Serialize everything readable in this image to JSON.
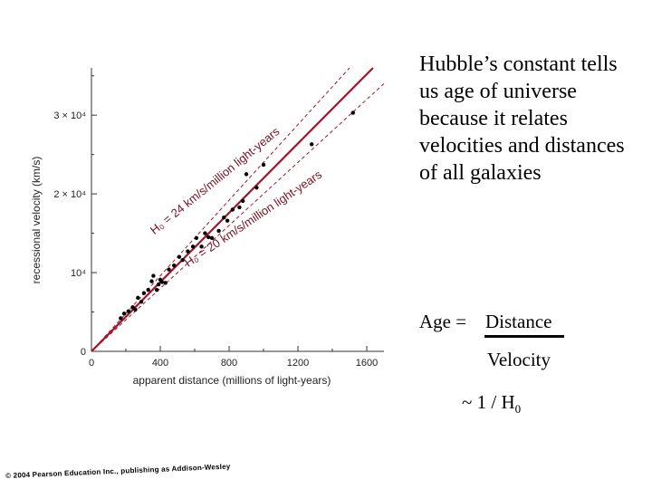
{
  "chart_data": {
    "type": "scatter",
    "xlabel": "apparent distance (millions of light-years)",
    "ylabel": "recessional velocity (km/s)",
    "xlim": [
      0,
      1700
    ],
    "ylim": [
      0,
      36000
    ],
    "x_ticks": [
      {
        "value": 0,
        "label": "0"
      },
      {
        "value": 400,
        "label": "400"
      },
      {
        "value": 800,
        "label": "800"
      },
      {
        "value": 1200,
        "label": "1200"
      },
      {
        "value": 1600,
        "label": "1600"
      }
    ],
    "y_ticks": [
      {
        "value": 0,
        "label": "0"
      },
      {
        "value": 10000,
        "label": "10⁴"
      },
      {
        "value": 20000,
        "label": "2 × 10⁴"
      },
      {
        "value": 30000,
        "label": "3 × 10⁴"
      }
    ],
    "points": [
      {
        "x": 170,
        "y": 4200
      },
      {
        "x": 190,
        "y": 4800
      },
      {
        "x": 215,
        "y": 5100
      },
      {
        "x": 240,
        "y": 5600
      },
      {
        "x": 255,
        "y": 5300
      },
      {
        "x": 270,
        "y": 6800
      },
      {
        "x": 290,
        "y": 6300
      },
      {
        "x": 305,
        "y": 7400
      },
      {
        "x": 330,
        "y": 7800
      },
      {
        "x": 350,
        "y": 8900
      },
      {
        "x": 360,
        "y": 9600
      },
      {
        "x": 380,
        "y": 7800
      },
      {
        "x": 390,
        "y": 8500
      },
      {
        "x": 400,
        "y": 9100
      },
      {
        "x": 410,
        "y": 8800
      },
      {
        "x": 430,
        "y": 8700
      },
      {
        "x": 450,
        "y": 10400
      },
      {
        "x": 480,
        "y": 10900
      },
      {
        "x": 510,
        "y": 12000
      },
      {
        "x": 530,
        "y": 11600
      },
      {
        "x": 560,
        "y": 12700
      },
      {
        "x": 590,
        "y": 13300
      },
      {
        "x": 610,
        "y": 14400
      },
      {
        "x": 640,
        "y": 13300
      },
      {
        "x": 660,
        "y": 15000
      },
      {
        "x": 680,
        "y": 14500
      },
      {
        "x": 700,
        "y": 14400
      },
      {
        "x": 740,
        "y": 15300
      },
      {
        "x": 770,
        "y": 17000
      },
      {
        "x": 790,
        "y": 16600
      },
      {
        "x": 820,
        "y": 18000
      },
      {
        "x": 860,
        "y": 18300
      },
      {
        "x": 880,
        "y": 19100
      },
      {
        "x": 900,
        "y": 22500
      },
      {
        "x": 960,
        "y": 20800
      },
      {
        "x": 1000,
        "y": 23700
      },
      {
        "x": 1280,
        "y": 26300
      },
      {
        "x": 1520,
        "y": 30300
      }
    ],
    "fit_lines": [
      {
        "slope_kms_per_mly": 24,
        "style": "dashed",
        "label": "H₀ = 24 km/s/million light-years"
      },
      {
        "slope_kms_per_mly": 22,
        "style": "solid",
        "label": ""
      },
      {
        "slope_kms_per_mly": 20,
        "style": "dashed",
        "label": "H₀ = 20 km/s/million light-years"
      }
    ],
    "grid": false,
    "line_color": "#a0152d",
    "point_color": "#000000"
  },
  "text": {
    "paragraph": "Hubble’s constant tells us age of universe because it relates  velocities and distances of all galaxies",
    "age_prefix": "Age =",
    "numerator": "Distance",
    "denominator": "Velocity",
    "approx": "~  1 / H",
    "approx_sub": "0",
    "copyright": "© 2004 Pearson Education Inc., publishing as Addison-Wesley"
  }
}
